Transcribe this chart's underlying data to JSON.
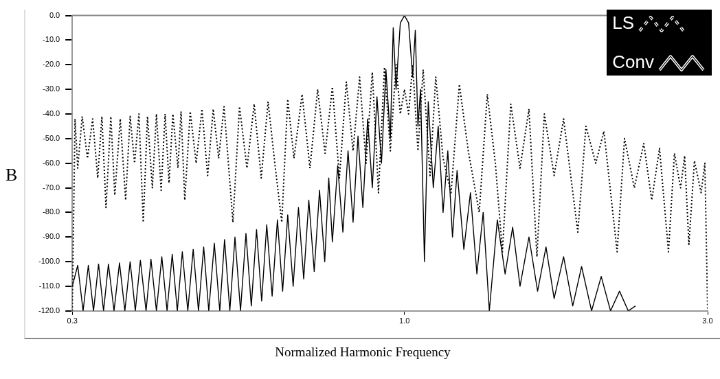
{
  "chart_data": {
    "type": "line",
    "xlabel": "Normalized Harmonic Frequency",
    "ylabel": "B",
    "log": "x",
    "grid": false,
    "legend": "top right",
    "marker": "none",
    "xlim": [
      0.3,
      3.0
    ],
    "xticks": [
      {
        "value": 0.3,
        "label": "0.3"
      },
      {
        "value": 1.0,
        "label": "1.0"
      },
      {
        "value": 3.0,
        "label": "3.0"
      }
    ],
    "ylim": [
      -120,
      0
    ],
    "yticks": [
      {
        "value": 0,
        "label": "0.0"
      },
      {
        "value": -10,
        "label": "-10.0"
      },
      {
        "value": -20,
        "label": "-20.0"
      },
      {
        "value": -30,
        "label": "-30.0"
      },
      {
        "value": -40,
        "label": "-40.0"
      },
      {
        "value": -50,
        "label": "-50.0"
      },
      {
        "value": -60,
        "label": "-60.0"
      },
      {
        "value": -70,
        "label": "-70.0"
      },
      {
        "value": -80,
        "label": "-80.0"
      },
      {
        "value": -90,
        "label": "-90.0"
      },
      {
        "value": -100,
        "label": "-100.0"
      },
      {
        "value": -110,
        "label": "-110.0"
      },
      {
        "value": -120,
        "label": "-120.0"
      }
    ],
    "series": [
      {
        "name": "LS",
        "color": "#000000",
        "line_style": "dotted",
        "x": [
          0.3,
          0.303,
          0.306,
          0.311,
          0.317,
          0.323,
          0.329,
          0.334,
          0.339,
          0.345,
          0.35,
          0.357,
          0.364,
          0.37,
          0.376,
          0.382,
          0.388,
          0.394,
          0.401,
          0.407,
          0.414,
          0.42,
          0.426,
          0.432,
          0.44,
          0.445,
          0.451,
          0.46,
          0.47,
          0.48,
          0.49,
          0.5,
          0.51,
          0.52,
          0.537,
          0.55,
          0.565,
          0.58,
          0.595,
          0.61,
          0.625,
          0.641,
          0.655,
          0.67,
          0.69,
          0.71,
          0.73,
          0.75,
          0.77,
          0.79,
          0.81,
          0.83,
          0.85,
          0.87,
          0.89,
          0.91,
          0.93,
          0.95,
          0.97,
          0.985,
          1.0,
          1.015,
          1.03,
          1.05,
          1.07,
          1.097,
          1.12,
          1.15,
          1.184,
          1.22,
          1.26,
          1.311,
          1.35,
          1.39,
          1.426,
          1.47,
          1.52,
          1.57,
          1.616,
          1.66,
          1.72,
          1.78,
          1.874,
          1.93,
          2.0,
          2.06,
          2.161,
          2.22,
          2.3,
          2.38,
          2.45,
          2.52,
          2.603,
          2.66,
          2.72,
          2.76,
          2.803,
          2.86,
          2.93,
          2.97,
          3.0
        ],
        "values": [
          -120,
          -42,
          -62,
          -41,
          -58,
          -42,
          -66,
          -41,
          -78,
          -41,
          -73,
          -42,
          -75,
          -41,
          -60,
          -40,
          -84,
          -41,
          -70,
          -40,
          -71,
          -40,
          -68,
          -40,
          -62,
          -39,
          -75,
          -39,
          -60,
          -38,
          -65,
          -38,
          -58,
          -37,
          -84,
          -37,
          -62,
          -36,
          -66,
          -35,
          -60,
          -84,
          -34,
          -58,
          -32,
          -62,
          -30,
          -56,
          -29,
          -66,
          -27,
          -55,
          -25,
          -60,
          -23,
          -72,
          -21,
          -55,
          -20,
          -40,
          -30,
          -40,
          -20,
          -55,
          -22,
          -65,
          -25,
          -58,
          -72,
          -28,
          -55,
          -80,
          -32,
          -60,
          -96,
          -36,
          -62,
          -38,
          -98,
          -40,
          -65,
          -42,
          -88,
          -45,
          -60,
          -47,
          -96,
          -50,
          -70,
          -52,
          -75,
          -54,
          -96,
          -56,
          -70,
          -57,
          -93,
          -59,
          -72,
          -60,
          -120
        ]
      },
      {
        "name": "Conv",
        "color": "#000000",
        "line_style": "solid",
        "x": [
          0.3,
          0.306,
          0.312,
          0.318,
          0.324,
          0.33,
          0.336,
          0.342,
          0.349,
          0.356,
          0.363,
          0.37,
          0.377,
          0.384,
          0.392,
          0.399,
          0.407,
          0.415,
          0.423,
          0.431,
          0.439,
          0.447,
          0.456,
          0.465,
          0.474,
          0.483,
          0.492,
          0.502,
          0.512,
          0.521,
          0.531,
          0.541,
          0.552,
          0.563,
          0.574,
          0.585,
          0.596,
          0.607,
          0.619,
          0.631,
          0.643,
          0.655,
          0.668,
          0.681,
          0.694,
          0.707,
          0.721,
          0.735,
          0.749,
          0.76,
          0.77,
          0.785,
          0.8,
          0.815,
          0.83,
          0.845,
          0.86,
          0.875,
          0.89,
          0.905,
          0.92,
          0.935,
          0.95,
          0.96,
          0.97,
          0.985,
          1.0,
          1.015,
          1.03,
          1.04,
          1.05,
          1.06,
          1.075,
          1.09,
          1.11,
          1.13,
          1.15,
          1.17,
          1.19,
          1.21,
          1.24,
          1.27,
          1.3,
          1.33,
          1.36,
          1.4,
          1.44,
          1.48,
          1.52,
          1.57,
          1.62,
          1.67,
          1.72,
          1.78,
          1.84,
          1.9,
          1.97,
          2.04,
          2.11,
          2.18,
          2.25,
          2.31
        ],
        "values": [
          -110,
          -101.5,
          -120,
          -101.5,
          -120,
          -101,
          -120,
          -101,
          -120,
          -100.5,
          -120,
          -100,
          -120,
          -99.5,
          -120,
          -99,
          -120,
          -98,
          -120,
          -97,
          -120,
          -96,
          -120,
          -95,
          -120,
          -94,
          -120,
          -92.5,
          -120,
          -91,
          -120,
          -90,
          -120,
          -88.5,
          -118,
          -87,
          -116,
          -85,
          -114,
          -83,
          -112,
          -81,
          -110,
          -78,
          -107,
          -75,
          -104,
          -71,
          -100,
          -66,
          -92,
          -61,
          -88,
          -55,
          -84,
          -49,
          -78,
          -42,
          -70,
          -33,
          -60,
          -22,
          -50,
          -5,
          -30,
          -3,
          0,
          -3,
          -25,
          -6,
          -45,
          -30,
          -100,
          -35,
          -70,
          -45,
          -80,
          -55,
          -90,
          -63,
          -95,
          -72,
          -105,
          -80,
          -120,
          -83,
          -105,
          -86,
          -110,
          -90,
          -112,
          -94,
          -115,
          -98,
          -118,
          -102,
          -120,
          -106,
          -120,
          -112,
          -120,
          -118
        ]
      }
    ]
  }
}
